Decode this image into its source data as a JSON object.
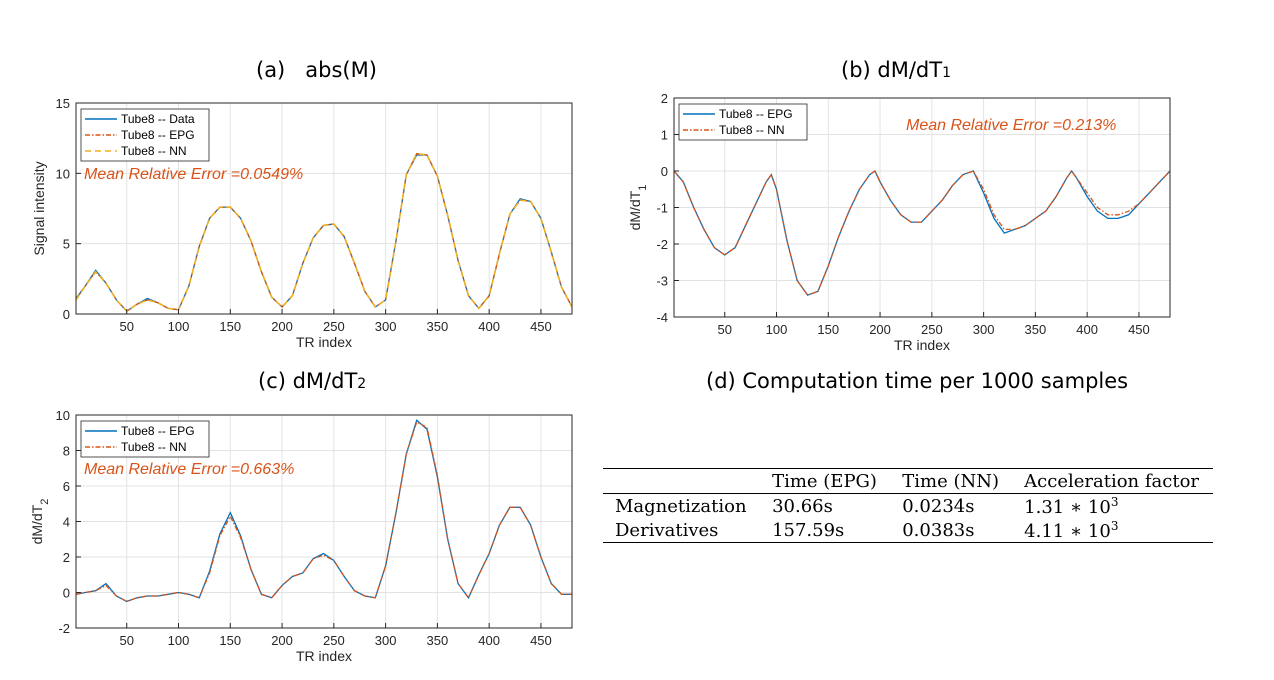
{
  "panels": {
    "a": {
      "title": "(a)   abs(M)",
      "chart_data": {
        "type": "line",
        "xlabel": "TR index",
        "ylabel": "Signal intensity",
        "xlim": [
          1,
          480
        ],
        "ylim": [
          0,
          15
        ],
        "xticks": [
          50,
          100,
          150,
          200,
          250,
          300,
          350,
          400,
          450
        ],
        "yticks": [
          0,
          5,
          10,
          15
        ],
        "grid": true,
        "legend_position": "top-left",
        "annotation": "Mean Relative Error =0.0549%",
        "x": [
          1,
          10,
          20,
          30,
          40,
          50,
          60,
          70,
          80,
          90,
          100,
          110,
          120,
          130,
          140,
          150,
          160,
          170,
          180,
          190,
          200,
          210,
          220,
          230,
          240,
          250,
          260,
          270,
          280,
          290,
          300,
          310,
          320,
          330,
          340,
          350,
          360,
          370,
          380,
          390,
          400,
          410,
          420,
          430,
          440,
          450,
          460,
          470,
          480
        ],
        "series": [
          {
            "name": "Tube8 -- Data",
            "color": "#0072BD",
            "style": "solid",
            "values": [
              1.1,
              2.0,
              3.1,
              2.2,
              1.0,
              0.2,
              0.7,
              1.1,
              0.8,
              0.4,
              0.3,
              2.0,
              4.8,
              6.8,
              7.6,
              7.6,
              6.8,
              5.2,
              3.0,
              1.2,
              0.5,
              1.3,
              3.6,
              5.4,
              6.3,
              6.4,
              5.5,
              3.6,
              1.6,
              0.5,
              1.0,
              5.2,
              9.9,
              11.3,
              11.3,
              9.8,
              7.0,
              3.8,
              1.3,
              0.4,
              1.3,
              4.3,
              7.1,
              8.2,
              8.0,
              6.8,
              4.4,
              1.9,
              0.5
            ]
          },
          {
            "name": "Tube8 -- EPG",
            "color": "#D95319",
            "style": "dashdot",
            "values": [
              1.0,
              2.0,
              3.0,
              2.2,
              1.0,
              0.2,
              0.7,
              1.0,
              0.8,
              0.4,
              0.3,
              2.0,
              4.8,
              6.8,
              7.6,
              7.6,
              6.8,
              5.2,
              3.0,
              1.2,
              0.5,
              1.3,
              3.6,
              5.4,
              6.3,
              6.4,
              5.5,
              3.6,
              1.6,
              0.5,
              1.0,
              5.2,
              9.9,
              11.4,
              11.3,
              9.8,
              7.0,
              3.8,
              1.3,
              0.4,
              1.3,
              4.3,
              7.1,
              8.1,
              8.0,
              6.8,
              4.4,
              1.9,
              0.5
            ]
          },
          {
            "name": "Tube8 -- NN",
            "color": "#EDB120",
            "style": "dashed",
            "values": [
              1.0,
              2.0,
              3.0,
              2.2,
              1.0,
              0.2,
              0.7,
              1.0,
              0.8,
              0.4,
              0.3,
              2.0,
              4.8,
              6.8,
              7.6,
              7.6,
              6.8,
              5.2,
              3.0,
              1.2,
              0.5,
              1.3,
              3.6,
              5.4,
              6.3,
              6.4,
              5.5,
              3.6,
              1.6,
              0.5,
              1.0,
              5.2,
              9.9,
              11.4,
              11.3,
              9.8,
              7.0,
              3.8,
              1.3,
              0.4,
              1.3,
              4.3,
              7.1,
              8.1,
              8.0,
              6.8,
              4.4,
              1.9,
              0.5
            ]
          }
        ]
      }
    },
    "b": {
      "title": "(b) dM/dT",
      "title_sub": "1",
      "chart_data": {
        "type": "line",
        "xlabel": "TR index",
        "ylabel": "dM/dT",
        "ylabel_sub": "1",
        "xlim": [
          1,
          480
        ],
        "ylim": [
          -4,
          2
        ],
        "xticks": [
          50,
          100,
          150,
          200,
          250,
          300,
          350,
          400,
          450
        ],
        "yticks": [
          -4,
          -3,
          -2,
          -1,
          0,
          1,
          2
        ],
        "grid": true,
        "legend_position": "top-left",
        "annotation": "Mean Relative Error =0.213%",
        "x": [
          1,
          10,
          20,
          30,
          40,
          50,
          60,
          70,
          80,
          90,
          95,
          100,
          110,
          120,
          130,
          140,
          150,
          160,
          170,
          180,
          190,
          195,
          200,
          210,
          220,
          230,
          240,
          250,
          260,
          270,
          280,
          290,
          300,
          310,
          320,
          330,
          340,
          350,
          360,
          370,
          380,
          385,
          390,
          400,
          410,
          420,
          430,
          440,
          450,
          460,
          470,
          480
        ],
        "series": [
          {
            "name": "Tube8 -- EPG",
            "color": "#0072BD",
            "style": "solid",
            "values": [
              0.0,
              -0.3,
              -1.0,
              -1.6,
              -2.1,
              -2.3,
              -2.1,
              -1.5,
              -0.9,
              -0.3,
              -0.1,
              -0.5,
              -1.9,
              -3.0,
              -3.4,
              -3.3,
              -2.6,
              -1.8,
              -1.1,
              -0.5,
              -0.1,
              0.0,
              -0.3,
              -0.8,
              -1.2,
              -1.4,
              -1.4,
              -1.1,
              -0.8,
              -0.4,
              -0.1,
              0.0,
              -0.6,
              -1.3,
              -1.7,
              -1.6,
              -1.5,
              -1.3,
              -1.1,
              -0.7,
              -0.2,
              0.0,
              -0.2,
              -0.7,
              -1.1,
              -1.3,
              -1.3,
              -1.2,
              -0.9,
              -0.6,
              -0.3,
              0.0
            ]
          },
          {
            "name": "Tube8 -- NN",
            "color": "#D95319",
            "style": "dashdot",
            "values": [
              0.0,
              -0.3,
              -1.0,
              -1.6,
              -2.1,
              -2.3,
              -2.1,
              -1.5,
              -0.9,
              -0.3,
              -0.1,
              -0.5,
              -1.9,
              -3.0,
              -3.4,
              -3.3,
              -2.6,
              -1.8,
              -1.1,
              -0.5,
              -0.1,
              0.0,
              -0.3,
              -0.8,
              -1.2,
              -1.4,
              -1.4,
              -1.1,
              -0.8,
              -0.4,
              -0.1,
              0.0,
              -0.5,
              -1.2,
              -1.6,
              -1.6,
              -1.5,
              -1.3,
              -1.1,
              -0.7,
              -0.2,
              0.0,
              -0.2,
              -0.6,
              -1.0,
              -1.2,
              -1.2,
              -1.1,
              -0.9,
              -0.6,
              -0.3,
              0.0
            ]
          }
        ]
      }
    },
    "c": {
      "title": "(c) dM/dT",
      "title_sub": "2",
      "chart_data": {
        "type": "line",
        "xlabel": "TR index",
        "ylabel": "dM/dT",
        "ylabel_sub": "2",
        "xlim": [
          1,
          480
        ],
        "ylim": [
          -2,
          10
        ],
        "xticks": [
          50,
          100,
          150,
          200,
          250,
          300,
          350,
          400,
          450
        ],
        "yticks": [
          -2,
          0,
          2,
          4,
          6,
          8,
          10
        ],
        "grid": true,
        "legend_position": "top-left",
        "annotation": "Mean Relative Error =0.663%",
        "x": [
          1,
          10,
          20,
          30,
          40,
          50,
          60,
          70,
          80,
          90,
          100,
          110,
          120,
          130,
          140,
          150,
          160,
          170,
          180,
          190,
          200,
          210,
          220,
          230,
          240,
          250,
          260,
          270,
          280,
          290,
          300,
          310,
          320,
          330,
          340,
          350,
          360,
          370,
          380,
          390,
          400,
          410,
          420,
          430,
          440,
          450,
          460,
          470,
          480
        ],
        "series": [
          {
            "name": "Tube8 -- EPG",
            "color": "#0072BD",
            "style": "solid",
            "values": [
              -0.1,
              0.0,
              0.1,
              0.5,
              -0.2,
              -0.5,
              -0.3,
              -0.2,
              -0.2,
              -0.1,
              0.0,
              -0.1,
              -0.3,
              1.2,
              3.3,
              4.5,
              3.2,
              1.3,
              -0.1,
              -0.3,
              0.4,
              0.9,
              1.1,
              1.9,
              2.2,
              1.8,
              0.9,
              0.1,
              -0.2,
              -0.3,
              1.5,
              4.5,
              7.8,
              9.7,
              9.2,
              6.5,
              3.0,
              0.5,
              -0.3,
              1.0,
              2.2,
              3.8,
              4.8,
              4.8,
              3.8,
              2.0,
              0.5,
              -0.1,
              -0.1
            ]
          },
          {
            "name": "Tube8 -- NN",
            "color": "#D95319",
            "style": "dashdot",
            "values": [
              -0.1,
              0.0,
              0.1,
              0.4,
              -0.2,
              -0.5,
              -0.3,
              -0.2,
              -0.2,
              -0.1,
              0.0,
              -0.1,
              -0.3,
              1.1,
              3.2,
              4.3,
              3.1,
              1.3,
              -0.1,
              -0.3,
              0.4,
              0.9,
              1.1,
              1.9,
              2.1,
              1.8,
              0.9,
              0.1,
              -0.2,
              -0.3,
              1.5,
              4.5,
              7.8,
              9.6,
              9.3,
              6.6,
              3.0,
              0.5,
              -0.3,
              1.0,
              2.2,
              3.8,
              4.8,
              4.8,
              3.8,
              2.0,
              0.5,
              -0.1,
              -0.1
            ]
          }
        ]
      }
    },
    "d": {
      "title": "(d) Computation time per 1000 samples",
      "chart_data": {
        "type": "table",
        "columns": [
          "",
          "Time (EPG)",
          "Time (NN)",
          "Acceleration factor"
        ],
        "rows": [
          {
            "label": "Magnetization",
            "epg": "30.66s",
            "nn": "0.0234s",
            "accel_base": "1.31 ∗ 10",
            "accel_exp": "3"
          },
          {
            "label": "Derivatives",
            "epg": "157.59s",
            "nn": "0.0383s",
            "accel_base": "4.11 ∗ 10",
            "accel_exp": "3"
          }
        ]
      }
    }
  },
  "colors": {
    "annotation": "#D95319",
    "grid": "#e3e3e3",
    "axis": "#262626"
  }
}
